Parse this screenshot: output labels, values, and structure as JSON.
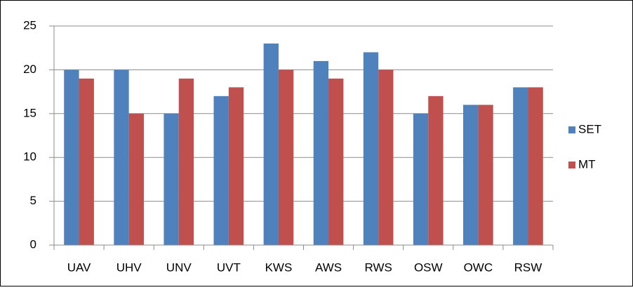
{
  "chart_data": {
    "type": "bar",
    "categories": [
      "UAV",
      "UHV",
      "UNV",
      "UVT",
      "KWS",
      "AWS",
      "RWS",
      "OSW",
      "OWC",
      "RSW"
    ],
    "series": [
      {
        "name": "SET",
        "color": "#4f81bd",
        "values": [
          20,
          20,
          15,
          17,
          23,
          21,
          22,
          15,
          16,
          18
        ]
      },
      {
        "name": "MT",
        "color": "#c0504d",
        "values": [
          19,
          15,
          19,
          18,
          20,
          19,
          20,
          17,
          16,
          18
        ]
      }
    ],
    "ylim": [
      0,
      25
    ],
    "yticks": [
      0,
      5,
      10,
      15,
      20,
      25
    ],
    "grid": true,
    "legend": "right"
  }
}
